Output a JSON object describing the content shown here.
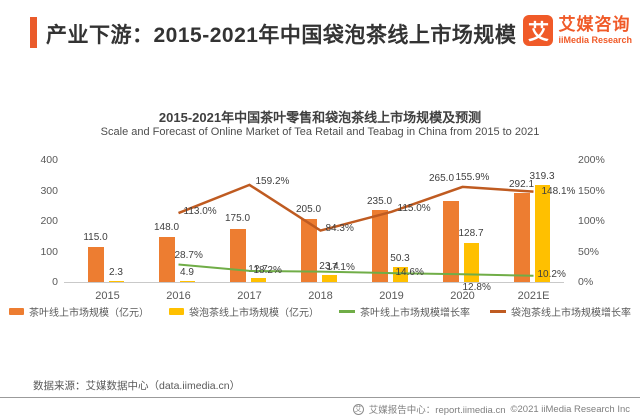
{
  "header": {
    "accent_color": "#EA5B2B",
    "title": "产业下游：2015-2021年中国袋泡茶线上市场规模",
    "logo": {
      "mark": "艾",
      "name_cn": "艾媒咨询",
      "name_en": "iiMedia Research",
      "color": "#F05A28"
    }
  },
  "chart_data": {
    "type": "bar",
    "combo": "bar+line",
    "title": "2015-2021年中国茶叶零售和袋泡茶线上市场规模及预测",
    "subtitle": "Scale and Forecast of Online Market of Tea Retail and Teabag in China from 2015 to 2021",
    "categories": [
      "2015",
      "2016",
      "2017",
      "2018",
      "2019",
      "2020",
      "2021E"
    ],
    "series": [
      {
        "name": "茶叶线上市场规模（亿元）",
        "type": "bar",
        "axis": "left",
        "color": "#ED7D31",
        "values": [
          115.0,
          148.0,
          175.0,
          205.0,
          235.0,
          265.0,
          292.1
        ]
      },
      {
        "name": "袋泡茶线上市场规模（亿元）",
        "type": "bar",
        "axis": "left",
        "color": "#FFC000",
        "values": [
          2.3,
          4.9,
          12.7,
          23.4,
          50.3,
          128.7,
          319.3
        ]
      },
      {
        "name": "茶叶线上市场规模增长率",
        "type": "line",
        "axis": "right",
        "color": "#70AD47",
        "values": [
          null,
          28.7,
          18.2,
          17.1,
          14.6,
          12.8,
          10.2
        ]
      },
      {
        "name": "袋泡茶线上市场规模增长率",
        "type": "line",
        "axis": "right",
        "color": "#BF5B21",
        "values": [
          null,
          113.0,
          159.2,
          84.3,
          115.0,
          155.9,
          148.1
        ]
      }
    ],
    "left_axis": {
      "min": 0,
      "max": 400,
      "ticks": [
        "400",
        "300",
        "200",
        "100",
        "0"
      ]
    },
    "right_axis": {
      "min": 0,
      "max": 200,
      "ticks": [
        "200%",
        "150%",
        "100%",
        "50%",
        "0%"
      ]
    },
    "legend_position": "bottom",
    "grid": false
  },
  "source_note": "数据来源：艾媒数据中心（data.iimedia.cn）",
  "footer": {
    "badge": "艾",
    "report_center": "艾媒报告中心：report.iimedia.cn",
    "copyright": "©2021  iiMedia Research Inc"
  }
}
